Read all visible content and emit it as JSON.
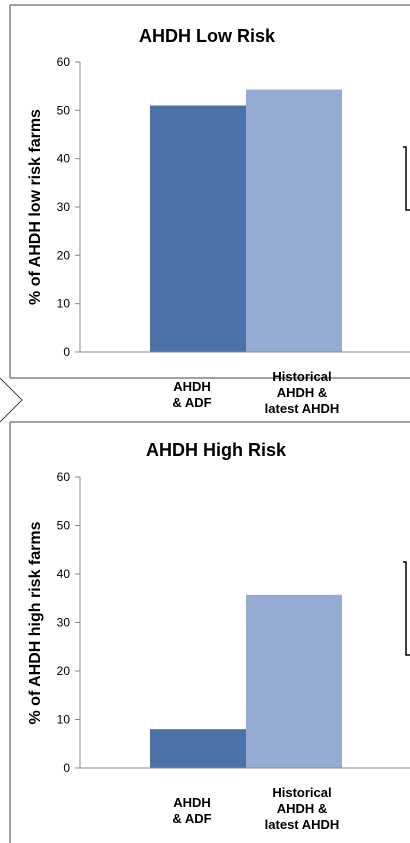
{
  "chart_data": [
    {
      "type": "bar",
      "title": "AHDH Low Risk",
      "ylabel": "% of AHDH low risk farms",
      "categories": [
        "AHDH & ADF",
        "Historical AHDH & latest AHDH"
      ],
      "category_lines": [
        [
          "AHDH",
          "& ADF"
        ],
        [
          "Historical",
          "AHDH &",
          "latest AHDH"
        ]
      ],
      "values": [
        51,
        54.3
      ],
      "colors": [
        "#4a72a8",
        "#95abd4"
      ],
      "ylim": [
        0,
        60
      ],
      "yticks": [
        0,
        10,
        20,
        30,
        40,
        50,
        60
      ],
      "grid": false
    },
    {
      "type": "bar",
      "title": "AHDH High Risk",
      "ylabel": "% of AHDH high risk farms",
      "categories": [
        "AHDH & ADF",
        "Historical AHDH & latest AHDH"
      ],
      "category_lines": [
        [
          "AHDH",
          "& ADF"
        ],
        [
          "Historical",
          "AHDH &",
          "latest AHDH"
        ]
      ],
      "values": [
        8,
        35.7
      ],
      "colors": [
        "#4a72a8",
        "#95abd4"
      ],
      "ylim": [
        0,
        60
      ],
      "yticks": [
        0,
        10,
        20,
        30,
        40,
        50,
        60
      ],
      "grid": false
    }
  ]
}
